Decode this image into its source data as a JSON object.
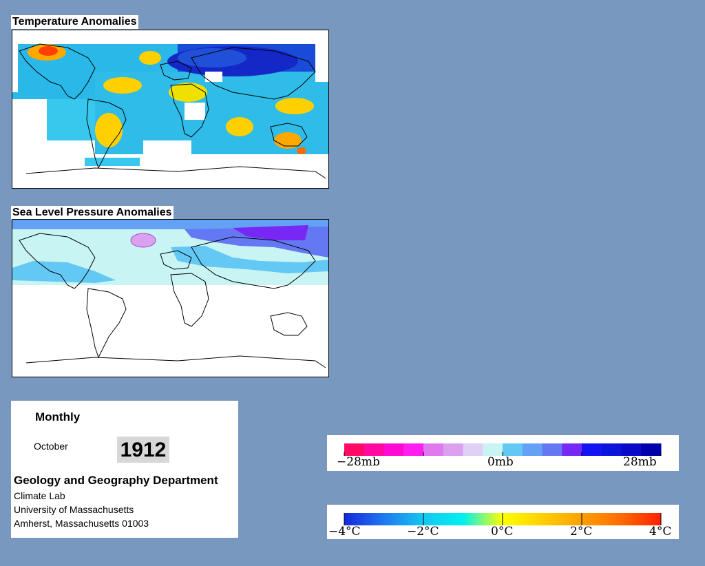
{
  "temperature_map": {
    "title": "Temperature Anomalies"
  },
  "pressure_map": {
    "title": "Sea Level Pressure Anomalies"
  },
  "info": {
    "period": "Monthly",
    "month": "October",
    "year": "1912",
    "department": "Geology and Geography Department",
    "lines": [
      "Climate Lab",
      "University of Massachusetts",
      "Amherst, Massachusetts 01003"
    ]
  },
  "pressure_legend": {
    "colors": [
      "#ff0a64",
      "#ff0aa0",
      "#ff0ad2",
      "#ff1ef0",
      "#e078f0",
      "#dca0f0",
      "#e0d0f4",
      "#c8f4f4",
      "#64c8f4",
      "#64a0f4",
      "#6478f4",
      "#7828f4",
      "#1414f4",
      "#0a14dc",
      "#0a0ac8",
      "#0000aa"
    ],
    "ticks": [
      "−28mb",
      "0mb",
      "28mb"
    ]
  },
  "temperature_legend": {
    "gradient": [
      "#1428dc",
      "#1e78f0",
      "#14c8f0",
      "#00f0f0",
      "#ffff00",
      "#ffd000",
      "#ffa000",
      "#ff6a00",
      "#ff2000"
    ],
    "ticks": [
      "−4°C",
      "−2°C",
      "0°C",
      "2°C",
      "4°C"
    ]
  }
}
